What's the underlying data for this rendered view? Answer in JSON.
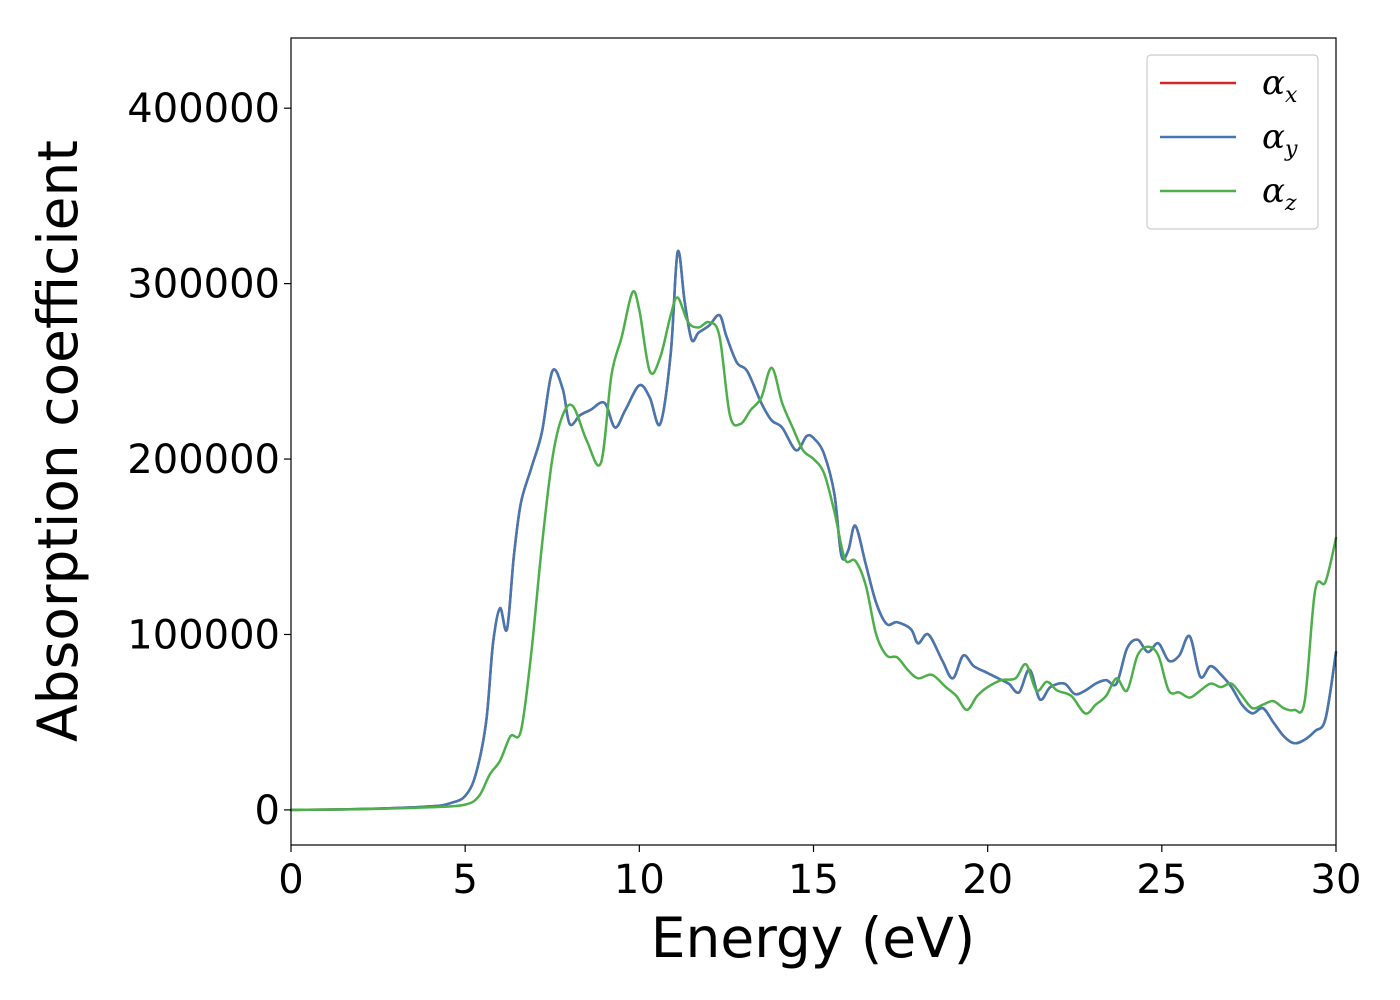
{
  "chart_data": {
    "type": "line",
    "xlabel": "Energy (eV)",
    "ylabel": "Absorption coefficient",
    "xlim": [
      0,
      30
    ],
    "ylim": [
      -20000,
      440000
    ],
    "xticks": [
      "0",
      "5",
      "10",
      "15",
      "20",
      "25",
      "30"
    ],
    "yticks": [
      "0",
      "100000",
      "200000",
      "300000",
      "400000"
    ],
    "grid": false,
    "legend_position": "top-right",
    "series": [
      {
        "name": "αx",
        "symbol": "α",
        "subscript": "x",
        "color": "#d62728",
        "x": [
          0,
          2,
          4,
          4.6,
          5,
          5.3,
          5.6,
          5.8,
          6.0,
          6.2,
          6.4,
          6.6,
          6.9,
          7.2,
          7.5,
          7.8,
          8.0,
          8.3,
          8.6,
          9.0,
          9.3,
          9.6,
          10.0,
          10.3,
          10.6,
          10.9,
          11.1,
          11.3,
          11.5,
          11.7,
          12.0,
          12.3,
          12.5,
          12.8,
          13.1,
          13.5,
          13.8,
          14.1,
          14.5,
          14.8,
          15.0,
          15.3,
          15.6,
          15.8,
          16.0,
          16.2,
          16.5,
          16.8,
          17.1,
          17.4,
          17.8,
          18.0,
          18.3,
          18.7,
          19.0,
          19.3,
          19.6,
          20.0,
          20.3,
          20.6,
          20.9,
          21.2,
          21.5,
          21.8,
          22.2,
          22.5,
          22.8,
          23.1,
          23.4,
          23.7,
          24.0,
          24.3,
          24.6,
          24.9,
          25.2,
          25.5,
          25.8,
          26.1,
          26.4,
          26.7,
          27.0,
          27.3,
          27.6,
          27.9,
          28.2,
          28.5,
          28.8,
          29.1,
          29.4,
          29.7,
          30.0
        ],
        "y": [
          0,
          500,
          2000,
          4000,
          8000,
          20000,
          50000,
          95000,
          115000,
          103000,
          145000,
          175000,
          195000,
          215000,
          250000,
          240000,
          220000,
          225000,
          228000,
          232000,
          218000,
          228000,
          242000,
          235000,
          220000,
          260000,
          318000,
          290000,
          268000,
          272000,
          276000,
          282000,
          270000,
          255000,
          250000,
          232000,
          222000,
          218000,
          205000,
          213000,
          212000,
          203000,
          180000,
          145000,
          148000,
          162000,
          140000,
          118000,
          106000,
          107000,
          103000,
          95000,
          100000,
          85000,
          75000,
          88000,
          82000,
          78000,
          75000,
          72000,
          67000,
          80000,
          63000,
          70000,
          72000,
          66000,
          68000,
          72000,
          74000,
          72000,
          92000,
          97000,
          90000,
          95000,
          85000,
          88000,
          99000,
          76000,
          82000,
          77000,
          70000,
          60000,
          55000,
          58000,
          50000,
          42000,
          38000,
          40000,
          45000,
          52000,
          90000
        ]
      },
      {
        "name": "αy",
        "symbol": "α",
        "subscript": "y",
        "color": "#4478b2",
        "x": [
          0,
          2,
          4,
          4.6,
          5,
          5.3,
          5.6,
          5.8,
          6.0,
          6.2,
          6.4,
          6.6,
          6.9,
          7.2,
          7.5,
          7.8,
          8.0,
          8.3,
          8.6,
          9.0,
          9.3,
          9.6,
          10.0,
          10.3,
          10.6,
          10.9,
          11.1,
          11.3,
          11.5,
          11.7,
          12.0,
          12.3,
          12.5,
          12.8,
          13.1,
          13.5,
          13.8,
          14.1,
          14.5,
          14.8,
          15.0,
          15.3,
          15.6,
          15.8,
          16.0,
          16.2,
          16.5,
          16.8,
          17.1,
          17.4,
          17.8,
          18.0,
          18.3,
          18.7,
          19.0,
          19.3,
          19.6,
          20.0,
          20.3,
          20.6,
          20.9,
          21.2,
          21.5,
          21.8,
          22.2,
          22.5,
          22.8,
          23.1,
          23.4,
          23.7,
          24.0,
          24.3,
          24.6,
          24.9,
          25.2,
          25.5,
          25.8,
          26.1,
          26.4,
          26.7,
          27.0,
          27.3,
          27.6,
          27.9,
          28.2,
          28.5,
          28.8,
          29.1,
          29.4,
          29.7,
          30.0
        ],
        "y": [
          0,
          500,
          2000,
          4000,
          8000,
          20000,
          50000,
          95000,
          115000,
          103000,
          145000,
          175000,
          195000,
          215000,
          250000,
          240000,
          220000,
          225000,
          228000,
          232000,
          218000,
          228000,
          242000,
          235000,
          220000,
          260000,
          318000,
          290000,
          268000,
          272000,
          276000,
          282000,
          270000,
          255000,
          250000,
          232000,
          222000,
          218000,
          205000,
          213000,
          212000,
          203000,
          180000,
          145000,
          148000,
          162000,
          140000,
          118000,
          106000,
          107000,
          103000,
          95000,
          100000,
          85000,
          75000,
          88000,
          82000,
          78000,
          75000,
          72000,
          67000,
          80000,
          63000,
          70000,
          72000,
          66000,
          68000,
          72000,
          74000,
          72000,
          92000,
          97000,
          90000,
          95000,
          85000,
          88000,
          99000,
          76000,
          82000,
          77000,
          70000,
          60000,
          55000,
          58000,
          50000,
          42000,
          38000,
          40000,
          45000,
          52000,
          90000
        ]
      },
      {
        "name": "αz",
        "symbol": "α",
        "subscript": "z",
        "color": "#4daf4a",
        "x": [
          0,
          2,
          4,
          5,
          5.4,
          5.7,
          6.0,
          6.3,
          6.6,
          6.9,
          7.2,
          7.5,
          7.8,
          8.1,
          8.5,
          8.9,
          9.2,
          9.5,
          9.8,
          10.0,
          10.3,
          10.6,
          10.9,
          11.1,
          11.4,
          11.7,
          12.0,
          12.3,
          12.6,
          12.9,
          13.2,
          13.5,
          13.8,
          14.1,
          14.4,
          14.7,
          15.0,
          15.3,
          15.6,
          15.9,
          16.2,
          16.5,
          16.8,
          17.1,
          17.4,
          17.7,
          18.0,
          18.4,
          18.8,
          19.1,
          19.4,
          19.7,
          20.0,
          20.4,
          20.8,
          21.1,
          21.4,
          21.7,
          22.0,
          22.4,
          22.8,
          23.1,
          23.4,
          23.7,
          24.0,
          24.3,
          24.6,
          24.9,
          25.2,
          25.5,
          25.8,
          26.1,
          26.4,
          26.7,
          27.0,
          27.3,
          27.6,
          27.9,
          28.2,
          28.5,
          28.8,
          29.1,
          29.4,
          29.7,
          30.0
        ],
        "y": [
          0,
          400,
          1500,
          3000,
          8000,
          20000,
          28000,
          42000,
          45000,
          90000,
          150000,
          200000,
          225000,
          230000,
          210000,
          198000,
          248000,
          270000,
          295000,
          285000,
          250000,
          258000,
          282000,
          292000,
          278000,
          275000,
          278000,
          270000,
          225000,
          220000,
          228000,
          235000,
          252000,
          232000,
          218000,
          205000,
          200000,
          192000,
          170000,
          143000,
          142000,
          128000,
          100000,
          88000,
          87000,
          80000,
          75000,
          77000,
          70000,
          65000,
          57000,
          65000,
          70000,
          74000,
          75000,
          83000,
          68000,
          73000,
          68000,
          65000,
          55000,
          60000,
          65000,
          75000,
          68000,
          88000,
          93000,
          88000,
          68000,
          67000,
          64000,
          68000,
          72000,
          70000,
          72000,
          65000,
          58000,
          60000,
          62000,
          58000,
          57000,
          62000,
          125000,
          130000,
          155000
        ]
      }
    ]
  }
}
